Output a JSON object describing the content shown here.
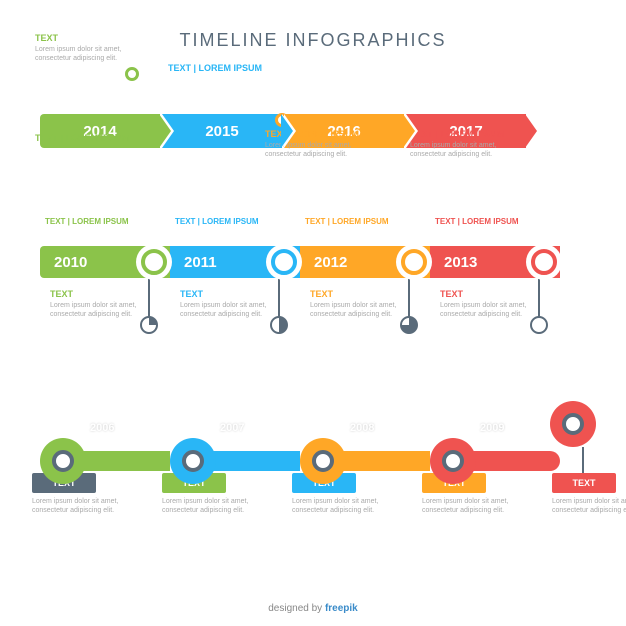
{
  "title": "TIMELINE INFOGRAPHICS",
  "colors": {
    "green": "#8bc34a",
    "blue": "#29b6f6",
    "orange": "#ffa726",
    "red": "#ef5350",
    "slate": "#5a6b7a"
  },
  "lorem_short": "Lorem ipsum dolor sit amet, consectetur adipiscing elit.",
  "row1": {
    "items": [
      {
        "year": "2014",
        "color": "#8bc34a",
        "callout_pos": "top",
        "title": "TEXT",
        "subtitle": "TEXT | LOREM IPSUM"
      },
      {
        "year": "2015",
        "color": "#29b6f6",
        "callout_pos": "top-label",
        "title": "TEXT | LOREM IPSUM"
      },
      {
        "year": "2016",
        "color": "#ffa726",
        "callout_pos": "bottom",
        "title": "TEXT | LOREM IPSUM"
      },
      {
        "year": "2017",
        "color": "#ef5350",
        "callout_pos": "bottom",
        "title": "TEXT | LOREM IPSUM"
      }
    ]
  },
  "row2": {
    "items": [
      {
        "year": "2010",
        "color": "#8bc34a",
        "label": "TEXT | LOREM IPSUM",
        "text_title": "TEXT"
      },
      {
        "year": "2011",
        "color": "#29b6f6",
        "label": "TEXT | LOREM IPSUM",
        "text_title": "TEXT"
      },
      {
        "year": "2012",
        "color": "#ffa726",
        "label": "TEXT | LOREM IPSUM",
        "text_title": "TEXT"
      },
      {
        "year": "2013",
        "color": "#ef5350",
        "label": "TEXT | LOREM IPSUM",
        "text_title": "TEXT"
      }
    ]
  },
  "row3": {
    "items": [
      {
        "year": "2006",
        "color": "#8bc34a",
        "box_color": "#5a6b7a",
        "box": "TEXT"
      },
      {
        "year": "2007",
        "color": "#29b6f6",
        "box_color": "#8bc34a",
        "box": "TEXT"
      },
      {
        "year": "2008",
        "color": "#ffa726",
        "box_color": "#29b6f6",
        "box": "TEXT"
      },
      {
        "year": "2009",
        "color": "#ef5350",
        "box_color": "#ffa726",
        "box": "TEXT"
      },
      {
        "year": "",
        "color": "#ef5350",
        "box_color": "#ef5350",
        "box": "TEXT",
        "end": true
      }
    ]
  },
  "credit_prefix": "designed by ",
  "credit_brand": "freepik"
}
